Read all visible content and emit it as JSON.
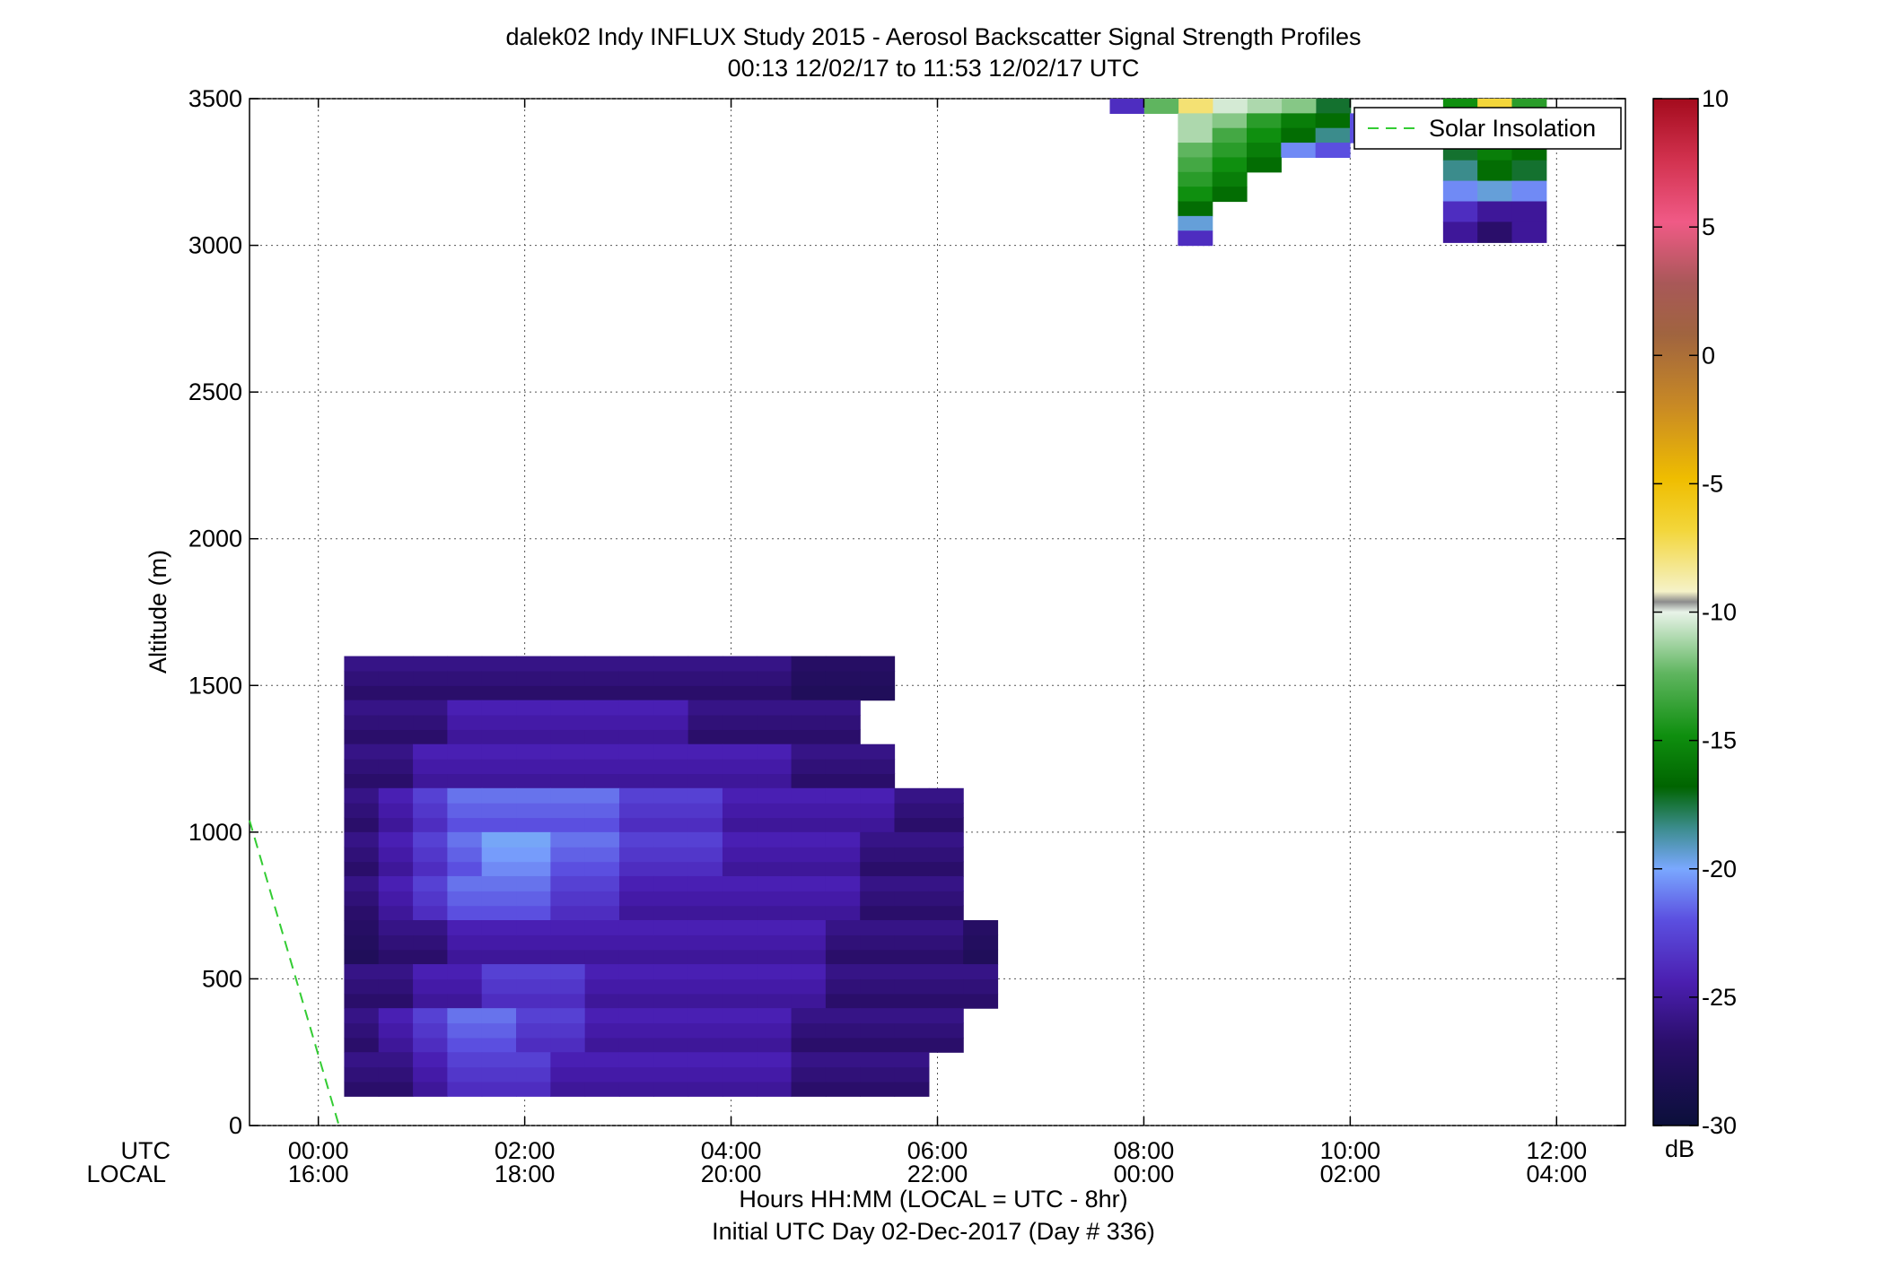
{
  "chart_data": {
    "type": "heatmap",
    "title": "dalek02 Indy INFLUX Study 2015 - Aerosol Backscatter Signal Strength Profiles",
    "subtitle": "00:13 12/02/17 to 11:53 12/02/17  UTC",
    "ylabel": "Altitude (m)",
    "xlabel": "Hours HH:MM  (LOCAL = UTC - 8hr)",
    "xlabel2": "Initial UTC Day 02-Dec-2017 (Day # 336)",
    "row_label_utc": "UTC",
    "row_label_local": "LOCAL",
    "x_unit": "hours UTC",
    "xlim": [
      -0.667,
      12.667
    ],
    "ylim": [
      0,
      3500
    ],
    "grid": true,
    "x_ticks": [
      {
        "value": 0,
        "utc": "00:00",
        "local": "16:00"
      },
      {
        "value": 2,
        "utc": "02:00",
        "local": "18:00"
      },
      {
        "value": 4,
        "utc": "04:00",
        "local": "20:00"
      },
      {
        "value": 6,
        "utc": "06:00",
        "local": "22:00"
      },
      {
        "value": 8,
        "utc": "08:00",
        "local": "00:00"
      },
      {
        "value": 10,
        "utc": "10:00",
        "local": "02:00"
      },
      {
        "value": 12,
        "utc": "12:00",
        "local": "04:00"
      }
    ],
    "y_ticks": [
      {
        "value": 0,
        "label": "0"
      },
      {
        "value": 500,
        "label": "500"
      },
      {
        "value": 1000,
        "label": "1000"
      },
      {
        "value": 1500,
        "label": "1500"
      },
      {
        "value": 2000,
        "label": "2000"
      },
      {
        "value": 2500,
        "label": "2500"
      },
      {
        "value": 3000,
        "label": "3000"
      },
      {
        "value": 3500,
        "label": "3500"
      }
    ],
    "legend": {
      "placement": "top-right",
      "label": "Solar Insolation",
      "color": "#33cc33"
    },
    "solar_line": [
      [
        -0.667,
        1040
      ],
      [
        0.2,
        0
      ]
    ],
    "colorbar": {
      "unit": "dB",
      "range": [
        -30,
        10
      ],
      "ticks": [
        {
          "value": 10,
          "label": "10"
        },
        {
          "value": 5,
          "label": "5"
        },
        {
          "value": 0,
          "label": "0"
        },
        {
          "value": -5,
          "label": "-5"
        },
        {
          "value": -10,
          "label": "-10"
        },
        {
          "value": -15,
          "label": "-15"
        },
        {
          "value": -20,
          "label": "-20"
        },
        {
          "value": -25,
          "label": "-25"
        },
        {
          "value": -30,
          "label": "-30"
        }
      ]
    },
    "cells": {
      "t0": 0.25,
      "dt": 0.3333,
      "h0": 100,
      "dh": 50,
      "low_layer_dB": [
        [
          -27,
          -27,
          -26,
          -25,
          -25,
          -25,
          -26,
          -26,
          -26,
          -26,
          -26,
          -26,
          -26,
          -27,
          -27,
          -27,
          -27
        ],
        [
          -27,
          -26,
          -25,
          -24,
          -24,
          -25,
          -25,
          -26,
          -26,
          -26,
          -26,
          -26,
          -26,
          -27,
          -27,
          -27,
          -27,
          -27
        ],
        [
          -27,
          -27,
          -26,
          -26,
          -25,
          -25,
          -25,
          -26,
          -26,
          -26,
          -26,
          -26,
          -26,
          -26,
          -27,
          -27,
          -27,
          -27,
          -27
        ],
        [
          -28,
          -27,
          -27,
          -26,
          -26,
          -26,
          -26,
          -26,
          -26,
          -26,
          -26,
          -26,
          -26,
          -26,
          -27,
          -27,
          -27,
          -27,
          -28
        ],
        [
          -27,
          -26,
          -25,
          -24,
          -24,
          -24,
          -25,
          -25,
          -26,
          -26,
          -26,
          -26,
          -26,
          -26,
          -26,
          -27,
          -27,
          -27
        ],
        [
          -27,
          -26,
          -25,
          -24,
          -23,
          -23,
          -24,
          -24,
          -25,
          -25,
          -25,
          -26,
          -26,
          -26,
          -26,
          -27,
          -27,
          -27
        ],
        [
          -27,
          -26,
          -25,
          -24,
          -24,
          -24,
          -24,
          -24,
          -25,
          -25,
          -25,
          -26,
          -26,
          -26,
          -26,
          -26,
          -27,
          -27
        ],
        [
          -27,
          -27,
          -26,
          -26,
          -26,
          -26,
          -26,
          -26,
          -26,
          -26,
          -26,
          -26,
          -26,
          -27,
          -27,
          -27
        ],
        [
          -27,
          -27,
          -27,
          -26,
          -26,
          -26,
          -26,
          -26,
          -26,
          -26,
          -27,
          -27,
          -27,
          -27,
          -27
        ],
        [
          -27,
          -27,
          -27,
          -27,
          -27,
          -27,
          -27,
          -27,
          -27,
          -27,
          -27,
          -27,
          -27,
          -28,
          -28,
          -28
        ]
      ],
      "upper_patch_dB": [
        [
          -25,
          -14,
          -8,
          -11,
          -12,
          -13,
          -20
        ],
        [
          -12,
          -13,
          -16,
          -18,
          -19,
          -24,
          -22
        ],
        [
          -12,
          -15,
          -17,
          -19,
          -21,
          -24
        ],
        [
          -14,
          -16,
          -18,
          -23,
          -24
        ],
        [
          -15,
          -17,
          -19
        ],
        [
          -16,
          -18
        ],
        [
          -17,
          -19
        ],
        [
          -19
        ],
        [
          -22
        ],
        [
          -25
        ],
        [
          -17,
          -7,
          -16
        ],
        [
          -18,
          -16,
          -17
        ],
        [
          -20,
          -18,
          -19
        ],
        [
          -21,
          -19,
          -20
        ],
        [
          -23,
          -22,
          -23
        ],
        [
          -25,
          -26,
          -26
        ],
        [
          -26,
          -27,
          -26
        ]
      ]
    }
  }
}
